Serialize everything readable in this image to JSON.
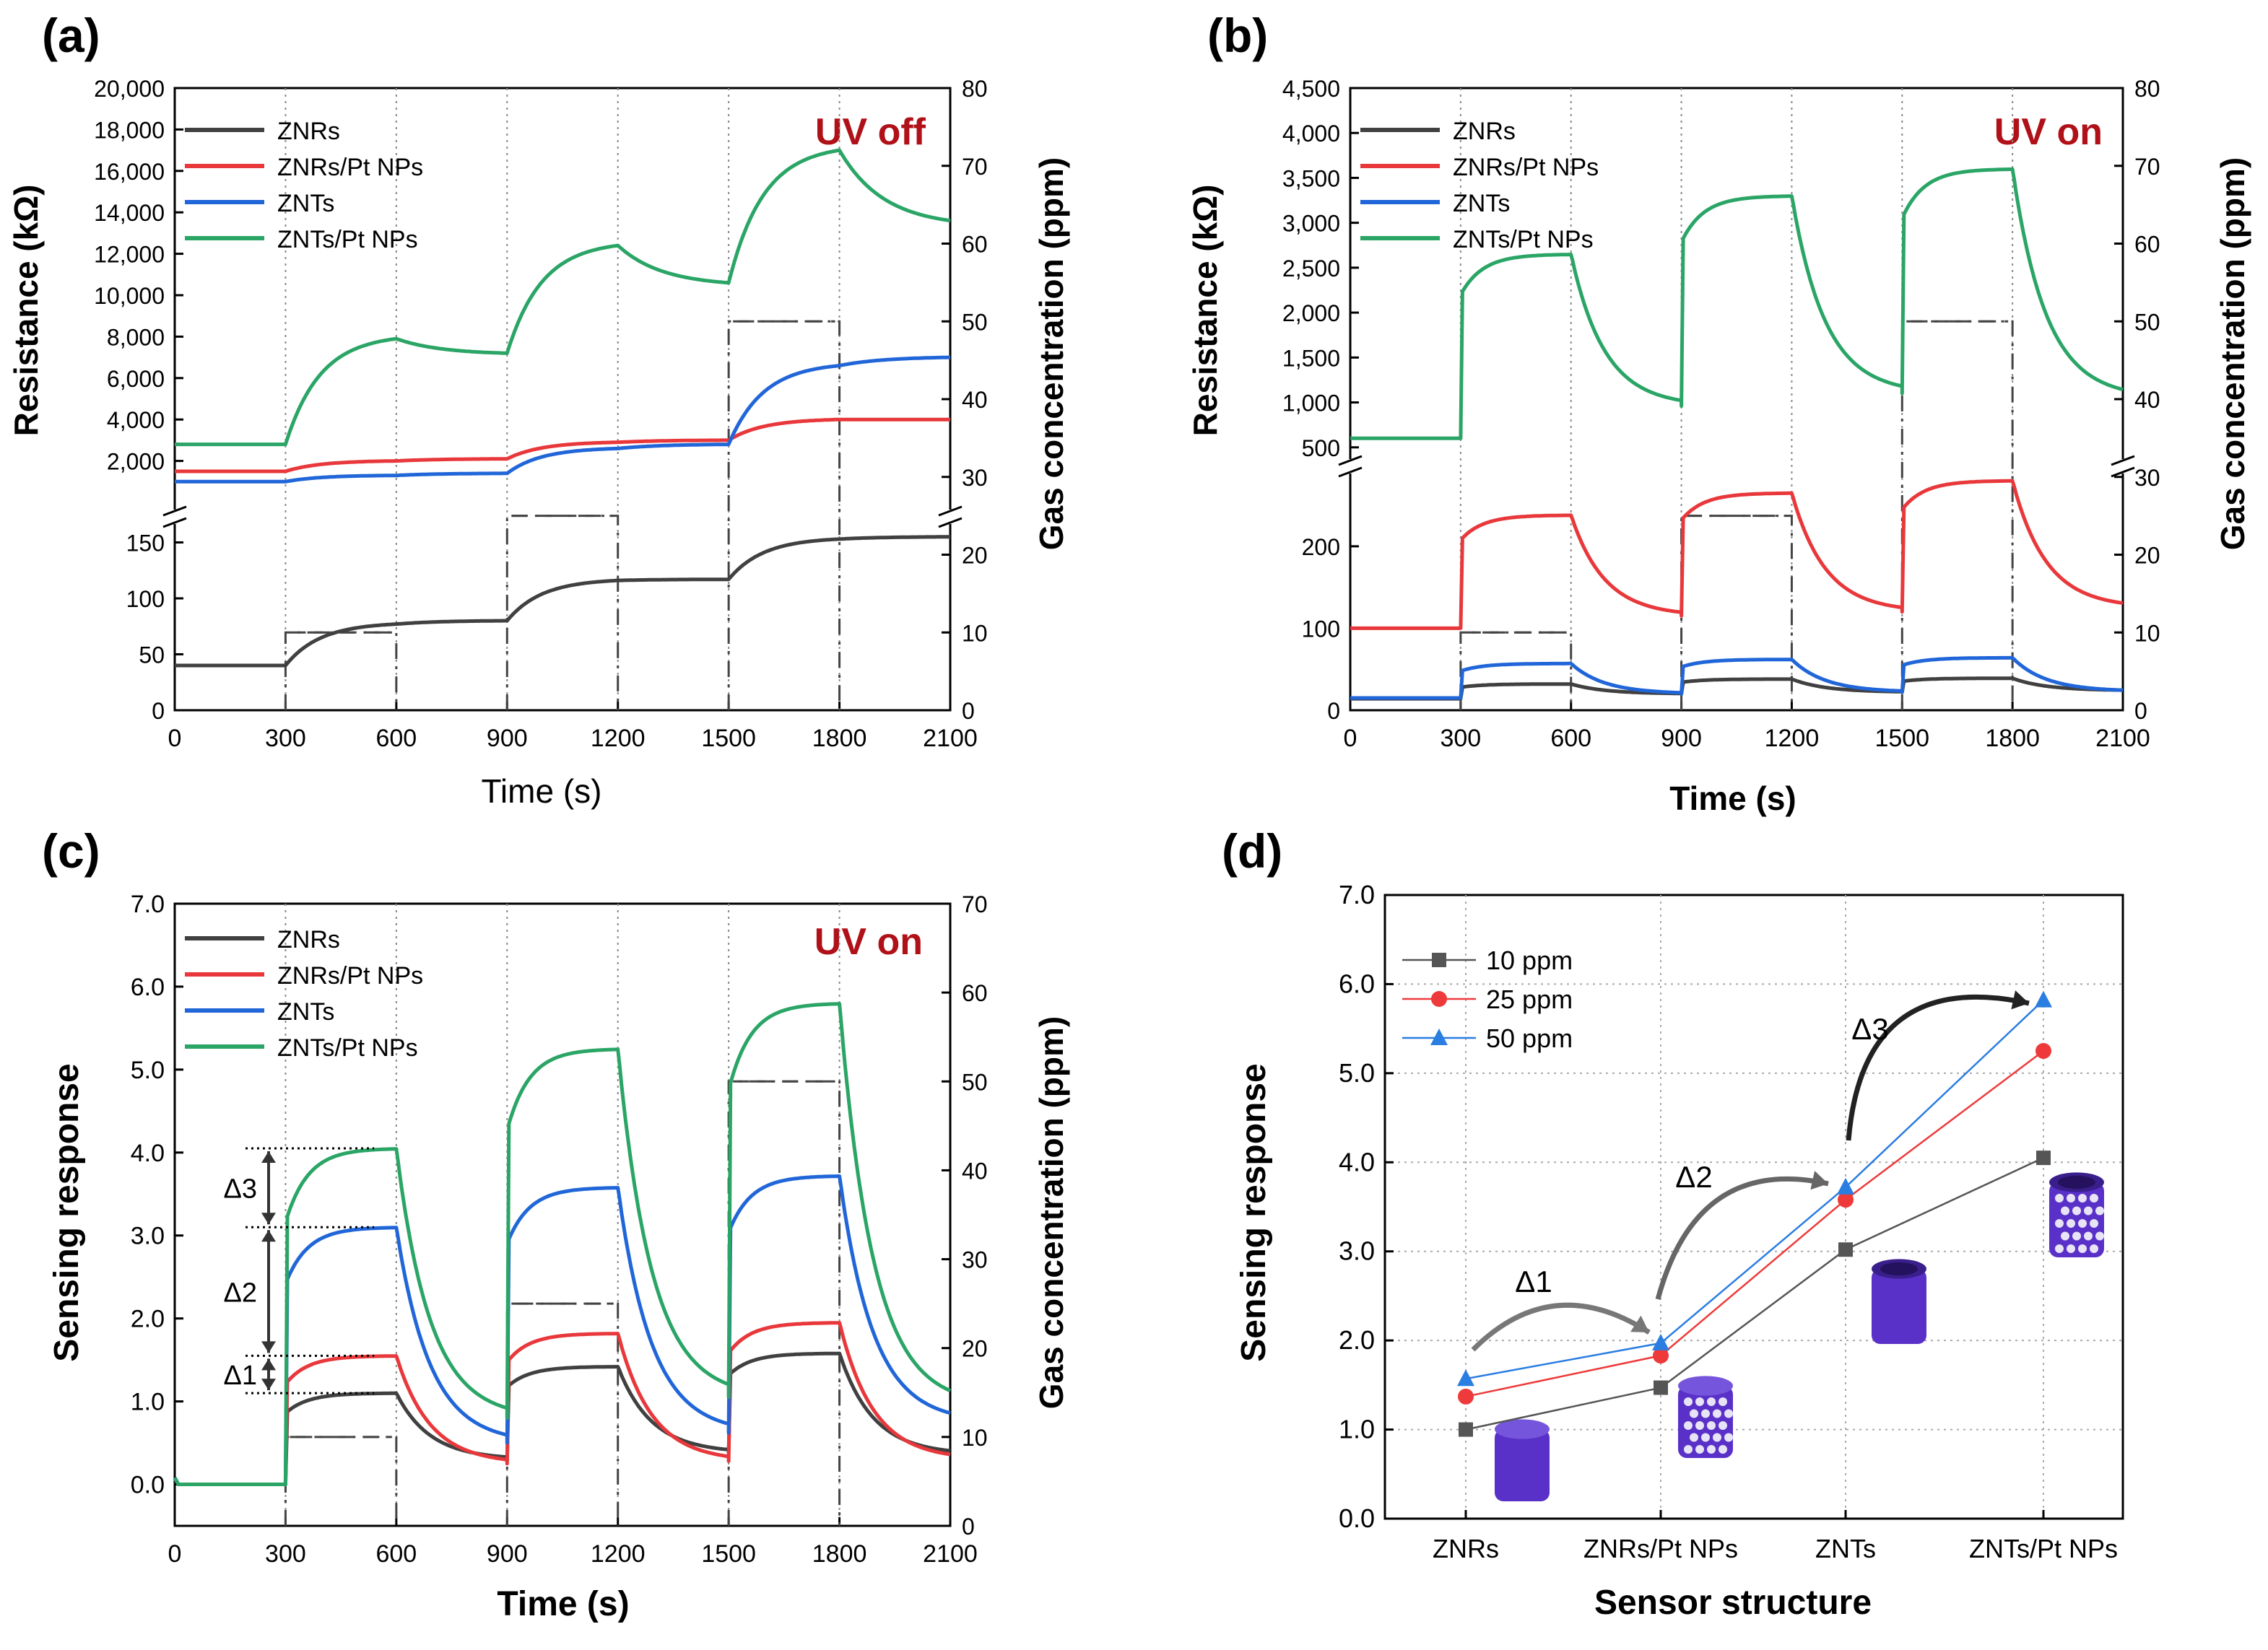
{
  "panels": {
    "a": {
      "label": "(a)",
      "condition": "UV off",
      "ylabel": "Resistance (kΩ)",
      "y2label": "Gas concentration (ppm)",
      "xlabel": "Time (s)"
    },
    "b": {
      "label": "(b)",
      "condition": "UV on",
      "ylabel": "Resistance (kΩ)",
      "y2label": "Gas concentration (ppm)",
      "xlabel": "Time (s)"
    },
    "c": {
      "label": "(c)",
      "condition": "UV on",
      "ylabel": "Sensing response",
      "y2label": "Gas concentration (ppm)",
      "xlabel": "Time (s)",
      "delta_labels": [
        "Δ3",
        "Δ2",
        "Δ1"
      ]
    },
    "d": {
      "label": "(d)",
      "ylabel": "Sensing response",
      "xlabel": "Sensor structure",
      "delta_labels": [
        "Δ1",
        "Δ2",
        "Δ3"
      ]
    }
  },
  "colors": {
    "ZNRs": "#404040",
    "ZNRs/Pt NPs": "#e8383b",
    "ZNTs": "#2166d8",
    "ZNTs/Pt NPs": "#2aa566",
    "uv_label": "#b01018",
    "d_10": "#555555",
    "d_25": "#ee3a3a",
    "d_50": "#2a7de1",
    "cylinder": "#5a31c8"
  },
  "chart_data": [
    {
      "panel": "a",
      "type": "line",
      "x_range": [
        0,
        2100
      ],
      "x_ticks": [
        "0",
        "300",
        "600",
        "900",
        "1200",
        "1500",
        "1800",
        "2100"
      ],
      "y_break": true,
      "y_lower_range": [
        0,
        160
      ],
      "y_lower_ticks": [
        "0",
        "50",
        "100",
        "150"
      ],
      "y_upper_range": [
        0,
        20000
      ],
      "y_upper_ticks": [
        "2,000",
        "4,000",
        "6,000",
        "8,000",
        "10,000",
        "12,000",
        "14,000",
        "16,000",
        "18,000",
        "20,000"
      ],
      "y2_range": [
        0,
        80
      ],
      "y2_ticks": [
        "0",
        "10",
        "20",
        "30",
        "40",
        "50",
        "60",
        "70",
        "80"
      ],
      "legend": [
        "ZNRs",
        "ZNRs/Pt NPs",
        "ZNTs",
        "ZNTs/Pt NPs"
      ],
      "series": [
        {
          "name": "ZNRs",
          "axis": "lower",
          "baseline": 40,
          "plateaus": [
            77,
            116,
            153
          ],
          "ends": [
            80,
            117,
            155
          ],
          "shape": "gradual"
        },
        {
          "name": "ZNRs/Pt NPs",
          "axis": "upper",
          "baseline": 1500,
          "plateaus": [
            2000,
            2900,
            4000
          ],
          "ends": [
            2100,
            3000,
            4000
          ],
          "shape": "gradual"
        },
        {
          "name": "ZNTs",
          "axis": "upper",
          "baseline": 1000,
          "plateaus": [
            1300,
            2600,
            6600
          ],
          "ends": [
            1400,
            2800,
            7000
          ],
          "shape": "gradual"
        },
        {
          "name": "ZNTs/Pt NPs",
          "axis": "upper",
          "baseline": 2800,
          "plateaus": [
            7900,
            12400,
            17000
          ],
          "ends": [
            7200,
            10600,
            13600
          ],
          "shape": "gradual"
        }
      ],
      "gas_pulses": [
        {
          "start": 300,
          "end": 600,
          "ppm": 10
        },
        {
          "start": 900,
          "end": 1200,
          "ppm": 25
        },
        {
          "start": 1500,
          "end": 1800,
          "ppm": 50
        }
      ]
    },
    {
      "panel": "b",
      "type": "line",
      "x_range": [
        0,
        2100
      ],
      "x_ticks": [
        "0",
        "300",
        "600",
        "900",
        "1200",
        "1500",
        "1800",
        "2100"
      ],
      "y_break": true,
      "y_lower_range": [
        0,
        280
      ],
      "y_lower_ticks": [
        "0",
        "100",
        "200"
      ],
      "y_upper_range": [
        450,
        4500
      ],
      "y_upper_ticks": [
        "500",
        "1,000",
        "1,500",
        "2,000",
        "2,500",
        "3,000",
        "3,500",
        "4,000",
        "4,500"
      ],
      "y2_range": [
        0,
        80
      ],
      "y2_ticks": [
        "0",
        "10",
        "20",
        "30",
        "40",
        "50",
        "60",
        "70",
        "80"
      ],
      "legend": [
        "ZNRs",
        "ZNRs/Pt NPs",
        "ZNTs",
        "ZNTs/Pt NPs"
      ],
      "series": [
        {
          "name": "ZNRs",
          "axis": "lower",
          "baseline": 14,
          "plateaus": [
            32,
            38,
            39
          ],
          "ends": [
            20,
            22,
            24
          ],
          "shape": "step"
        },
        {
          "name": "ZNRs/Pt NPs",
          "axis": "lower",
          "baseline": 100,
          "plateaus": [
            238,
            265,
            280
          ],
          "ends": [
            115,
            120,
            125
          ],
          "shape": "step"
        },
        {
          "name": "ZNTs",
          "axis": "lower",
          "baseline": 15,
          "plateaus": [
            57,
            62,
            64
          ],
          "ends": [
            20,
            22,
            23
          ],
          "shape": "step"
        },
        {
          "name": "ZNTs/Pt NPs",
          "axis": "upper",
          "baseline": 600,
          "plateaus": [
            2650,
            3300,
            3600
          ],
          "ends": [
            960,
            1100,
            1050
          ],
          "shape": "step"
        }
      ],
      "gas_pulses": [
        {
          "start": 300,
          "end": 600,
          "ppm": 10
        },
        {
          "start": 900,
          "end": 1200,
          "ppm": 25
        },
        {
          "start": 1500,
          "end": 1800,
          "ppm": 50
        }
      ]
    },
    {
      "panel": "c",
      "type": "line",
      "x_range": [
        0,
        2100
      ],
      "x_ticks": [
        "0",
        "300",
        "600",
        "900",
        "1200",
        "1500",
        "1800",
        "2100"
      ],
      "y_range": [
        -0.5,
        7.0
      ],
      "y_ticks": [
        "0.0",
        "1.0",
        "2.0",
        "3.0",
        "4.0",
        "5.0",
        "6.0",
        "7.0"
      ],
      "y2_range": [
        0,
        70
      ],
      "y2_ticks": [
        "0",
        "10",
        "20",
        "30",
        "40",
        "50",
        "60",
        "70"
      ],
      "legend": [
        "ZNRs",
        "ZNRs/Pt NPs",
        "ZNTs",
        "ZNTs/Pt NPs"
      ],
      "series": [
        {
          "name": "ZNRs",
          "baseline": 0.0,
          "plateaus": [
            1.1,
            1.42,
            1.58
          ],
          "ends": [
            0.3,
            0.38,
            0.36
          ],
          "shape": "step"
        },
        {
          "name": "ZNRs/Pt NPs",
          "baseline": 0.0,
          "plateaus": [
            1.55,
            1.82,
            1.95
          ],
          "ends": [
            0.25,
            0.28,
            0.3
          ],
          "shape": "step"
        },
        {
          "name": "ZNTs",
          "baseline": 0.0,
          "plateaus": [
            3.1,
            3.58,
            3.72
          ],
          "ends": [
            0.5,
            0.62,
            0.75
          ],
          "shape": "step"
        },
        {
          "name": "ZNTs/Pt NPs",
          "baseline": 0.0,
          "plateaus": [
            4.05,
            5.25,
            5.8
          ],
          "ends": [
            0.8,
            1.05,
            0.95
          ],
          "shape": "step"
        }
      ],
      "gas_pulses": [
        {
          "start": 300,
          "end": 600,
          "ppm": 10
        },
        {
          "start": 900,
          "end": 1200,
          "ppm": 25
        },
        {
          "start": 1500,
          "end": 1800,
          "ppm": 50
        }
      ],
      "delta_levels": [
        1.1,
        1.55,
        3.1,
        4.05
      ]
    },
    {
      "panel": "d",
      "type": "line",
      "categories": [
        "ZNRs",
        "ZNRs/Pt NPs",
        "ZNTs",
        "ZNTs/Pt NPs"
      ],
      "y_range": [
        0.0,
        7.0
      ],
      "y_ticks": [
        "0.0",
        "1.0",
        "2.0",
        "3.0",
        "4.0",
        "5.0",
        "6.0",
        "7.0"
      ],
      "legend": [
        "10 ppm",
        "25 ppm",
        "50 ppm"
      ],
      "series": [
        {
          "name": "10 ppm",
          "marker": "square",
          "values": [
            1.0,
            1.47,
            3.02,
            4.05
          ]
        },
        {
          "name": "25 ppm",
          "marker": "circle",
          "values": [
            1.37,
            1.83,
            3.58,
            5.25
          ]
        },
        {
          "name": "50 ppm",
          "marker": "triangle",
          "values": [
            1.57,
            1.97,
            3.72,
            5.82
          ]
        }
      ]
    }
  ]
}
